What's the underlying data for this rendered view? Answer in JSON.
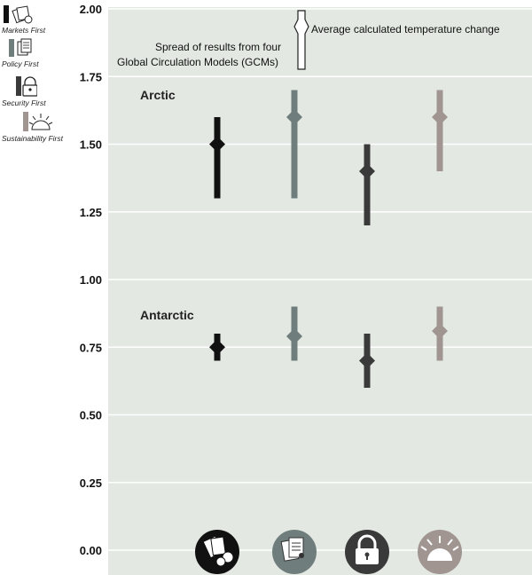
{
  "legend": {
    "items": [
      {
        "label": "Markets First",
        "icon": "markets-icon",
        "color": "#111111"
      },
      {
        "label": "Policy First",
        "icon": "policy-icon",
        "color": "#6f7e7c"
      },
      {
        "label": "Security First",
        "icon": "security-icon",
        "color": "#3a3a3a"
      },
      {
        "label": "Sustainability First",
        "icon": "sustainability-icon",
        "color": "#a09590"
      }
    ]
  },
  "annotations": {
    "average": "Average calculated temperature change",
    "spread_line1": "Spread of results from four",
    "spread_line2": "Global Circulation Models (GCMs)"
  },
  "chart_data": {
    "type": "range",
    "ylim": [
      0,
      2
    ],
    "yticks": [
      "0.00",
      "0.25",
      "0.50",
      "0.75",
      "1.00",
      "1.25",
      "1.50",
      "1.75",
      "2.00"
    ],
    "background": "#e3e8e2",
    "categories": [
      "Markets First",
      "Policy First",
      "Security First",
      "Sustainability First"
    ],
    "groups": [
      {
        "name": "Arctic",
        "series": [
          {
            "scenario": "Markets First",
            "min": 1.3,
            "max": 1.6,
            "avg": 1.5,
            "color": "#111111"
          },
          {
            "scenario": "Policy First",
            "min": 1.3,
            "max": 1.7,
            "avg": 1.6,
            "color": "#6f7e7c"
          },
          {
            "scenario": "Security First",
            "min": 1.2,
            "max": 1.5,
            "avg": 1.4,
            "color": "#3a3a3a"
          },
          {
            "scenario": "Sustainability First",
            "min": 1.4,
            "max": 1.7,
            "avg": 1.6,
            "color": "#a09590"
          }
        ]
      },
      {
        "name": "Antarctic",
        "series": [
          {
            "scenario": "Markets First",
            "min": 0.7,
            "max": 0.8,
            "avg": 0.75,
            "color": "#111111"
          },
          {
            "scenario": "Policy First",
            "min": 0.7,
            "max": 0.9,
            "avg": 0.79,
            "color": "#6f7e7c"
          },
          {
            "scenario": "Security First",
            "min": 0.6,
            "max": 0.8,
            "avg": 0.7,
            "color": "#3a3a3a"
          },
          {
            "scenario": "Sustainability First",
            "min": 0.7,
            "max": 0.9,
            "avg": 0.81,
            "color": "#a09590"
          }
        ]
      }
    ]
  }
}
